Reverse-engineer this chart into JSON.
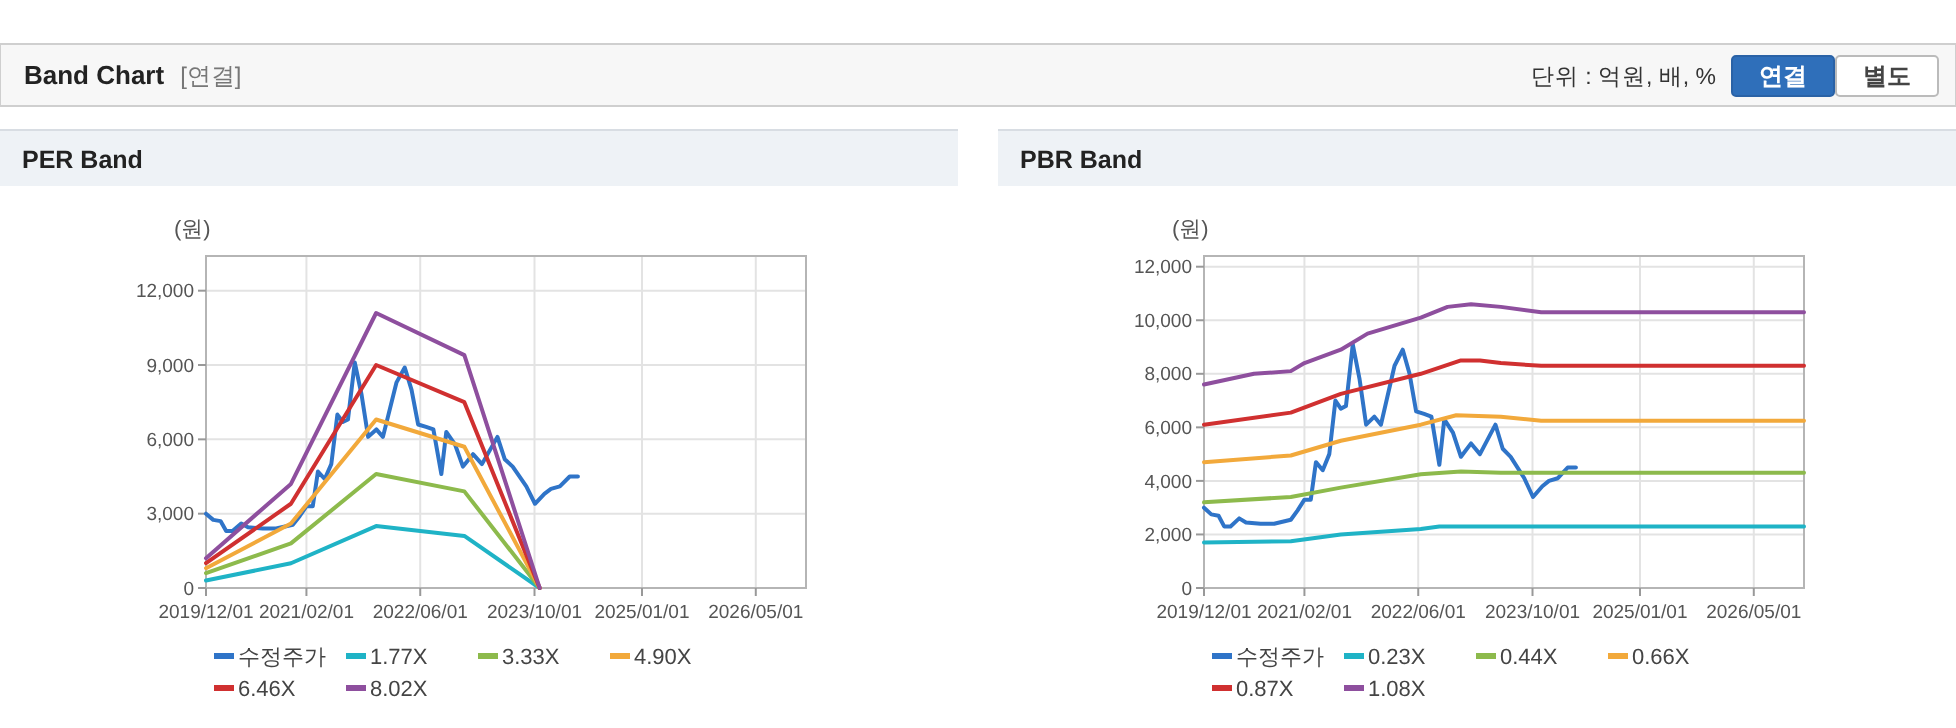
{
  "chart_data": [
    {
      "type": "other",
      "title": "Band Chart",
      "subtitle": "[연결]",
      "annotations": [
        "단위 : 억원, 배, %",
        "연결",
        "별도"
      ]
    },
    {
      "type": "line",
      "title": "PER Band",
      "ylabel": "(원)",
      "grid": true,
      "legend": "bottom",
      "xlim": [
        "2019-12-01",
        "2026-12-01"
      ],
      "ylim": [
        0,
        13400
      ],
      "xticks": [
        {
          "value": "2019-12-01",
          "label": "2019/12/01"
        },
        {
          "value": "2021-02-01",
          "label": "2021/02/01"
        },
        {
          "value": "2022-06-01",
          "label": "2022/06/01"
        },
        {
          "value": "2023-10-01",
          "label": "2023/10/01"
        },
        {
          "value": "2025-01-01",
          "label": "2025/01/01"
        },
        {
          "value": "2026-05-01",
          "label": "2026/05/01"
        }
      ],
      "yticks": [
        0,
        {
          "value": 3000,
          "label": "3,000"
        },
        {
          "value": 6000,
          "label": "6,000"
        },
        {
          "value": 9000,
          "label": "9,000"
        },
        {
          "value": 12000,
          "label": "12,000"
        }
      ],
      "series": [
        {
          "name": "수정주가",
          "color": "#2f74c8",
          "x": [
            "2019-12-01",
            "2020-01-01",
            "2020-02-01",
            "2020-02-25",
            "2020-03-23",
            "2020-04-29",
            "2020-05-28",
            "2020-07-29",
            "2020-09-25",
            "2020-12-05",
            "2021-01-03",
            "2021-02-01",
            "2021-02-28",
            "2021-03-22",
            "2021-04-20",
            "2021-05-18",
            "2021-06-13",
            "2021-07-06",
            "2021-07-28",
            "2021-08-26",
            "2021-09-24",
            "2021-10-22",
            "2021-11-26",
            "2021-12-24",
            "2022-02-20",
            "2022-03-27",
            "2022-04-25",
            "2022-05-23",
            "2022-06-26",
            "2022-07-27",
            "2022-08-30",
            "2022-09-20",
            "2022-10-27",
            "2022-11-30",
            "2023-01-12",
            "2023-02-19",
            "2023-04-26",
            "2023-05-27",
            "2023-06-30",
            "2023-08-27",
            "2023-10-03",
            "2023-11-12",
            "2023-12-10",
            "2024-01-17",
            "2024-02-28",
            "2024-04-03"
          ],
          "values": [
            3000,
            2750,
            2700,
            2300,
            2300,
            2600,
            2450,
            2400,
            2400,
            2550,
            2900,
            3300,
            3300,
            4700,
            4400,
            5000,
            7000,
            6700,
            6800,
            9100,
            7800,
            6100,
            6400,
            6100,
            8300,
            8900,
            8000,
            6600,
            6500,
            6400,
            4600,
            6300,
            5800,
            4900,
            5400,
            5000,
            6100,
            5200,
            4900,
            4100,
            3400,
            3800,
            4000,
            4100,
            4500,
            4500
          ]
        },
        {
          "name": "1.77X",
          "color": "#1fb3c6",
          "x": [
            "2019-12-01",
            "2020-11-27",
            "2021-11-25",
            "2022-12-06",
            "2023-10-23"
          ],
          "values": [
            300,
            1000,
            2500,
            2100,
            0
          ]
        },
        {
          "name": "3.33X",
          "color": "#8dba4c",
          "x": [
            "2019-12-01",
            "2020-11-27",
            "2021-11-25",
            "2022-12-06",
            "2023-10-23"
          ],
          "values": [
            600,
            1800,
            4600,
            3900,
            0
          ]
        },
        {
          "name": "4.90X",
          "color": "#f2a93b",
          "x": [
            "2019-12-01",
            "2020-11-27",
            "2021-11-25",
            "2022-12-06",
            "2023-10-23"
          ],
          "values": [
            800,
            2600,
            6800,
            5700,
            0
          ]
        },
        {
          "name": "6.46X",
          "color": "#d03030",
          "x": [
            "2019-12-01",
            "2020-11-27",
            "2021-11-25",
            "2022-12-06",
            "2023-10-23"
          ],
          "values": [
            1000,
            3400,
            9000,
            7500,
            0
          ]
        },
        {
          "name": "8.02X",
          "color": "#8e4f9e",
          "x": [
            "2019-12-01",
            "2020-11-27",
            "2021-11-25",
            "2022-12-06",
            "2023-10-23"
          ],
          "values": [
            1200,
            4200,
            11100,
            9400,
            0
          ]
        }
      ]
    },
    {
      "type": "line",
      "title": "PBR Band",
      "ylabel": "(원)",
      "grid": true,
      "legend": "bottom",
      "xlim": [
        "2019-12-01",
        "2026-12-01"
      ],
      "ylim": [
        0,
        12400
      ],
      "xticks": [
        {
          "value": "2019-12-01",
          "label": "2019/12/01"
        },
        {
          "value": "2021-02-01",
          "label": "2021/02/01"
        },
        {
          "value": "2022-06-01",
          "label": "2022/06/01"
        },
        {
          "value": "2023-10-01",
          "label": "2023/10/01"
        },
        {
          "value": "2025-01-01",
          "label": "2025/01/01"
        },
        {
          "value": "2026-05-01",
          "label": "2026/05/01"
        }
      ],
      "yticks": [
        0,
        {
          "value": 2000,
          "label": "2,000"
        },
        {
          "value": 4000,
          "label": "4,000"
        },
        {
          "value": 6000,
          "label": "6,000"
        },
        {
          "value": 8000,
          "label": "8,000"
        },
        {
          "value": 10000,
          "label": "10,000"
        },
        {
          "value": 12000,
          "label": "12,000"
        }
      ],
      "series": [
        {
          "name": "수정주가",
          "color": "#2f74c8",
          "x": [
            "2019-12-01",
            "2020-01-01",
            "2020-02-01",
            "2020-02-25",
            "2020-03-23",
            "2020-04-29",
            "2020-05-28",
            "2020-07-29",
            "2020-09-25",
            "2020-12-05",
            "2021-01-03",
            "2021-02-01",
            "2021-02-28",
            "2021-03-22",
            "2021-04-20",
            "2021-05-18",
            "2021-06-13",
            "2021-07-06",
            "2021-07-28",
            "2021-08-26",
            "2021-09-24",
            "2021-10-22",
            "2021-11-26",
            "2021-12-24",
            "2022-02-20",
            "2022-03-27",
            "2022-04-25",
            "2022-05-23",
            "2022-06-26",
            "2022-07-27",
            "2022-08-30",
            "2022-09-20",
            "2022-10-27",
            "2022-11-30",
            "2023-01-12",
            "2023-02-19",
            "2023-04-26",
            "2023-05-27",
            "2023-06-30",
            "2023-08-27",
            "2023-10-03",
            "2023-11-12",
            "2023-12-10",
            "2024-01-17",
            "2024-02-28",
            "2024-04-03"
          ],
          "values": [
            3000,
            2750,
            2700,
            2300,
            2300,
            2600,
            2450,
            2400,
            2400,
            2550,
            2900,
            3300,
            3300,
            4700,
            4400,
            5000,
            7000,
            6700,
            6800,
            9100,
            7800,
            6100,
            6400,
            6100,
            8300,
            8900,
            8000,
            6600,
            6500,
            6400,
            4600,
            6300,
            5800,
            4900,
            5400,
            5000,
            6100,
            5200,
            4900,
            4100,
            3400,
            3800,
            4000,
            4100,
            4500,
            4500
          ]
        },
        {
          "name": "0.23X",
          "color": "#1fb3c6",
          "x": [
            "2019-12-01",
            "2020-12-05",
            "2021-07-06",
            "2022-06-12",
            "2022-08-30",
            "2026-12-01"
          ],
          "values": [
            1700,
            1750,
            2000,
            2200,
            2300,
            2300
          ]
        },
        {
          "name": "0.44X",
          "color": "#8dba4c",
          "x": [
            "2019-12-01",
            "2020-12-05",
            "2021-07-06",
            "2022-06-12",
            "2022-11-30",
            "2023-05-19",
            "2026-12-01"
          ],
          "values": [
            3200,
            3400,
            3750,
            4250,
            4350,
            4300,
            4300
          ]
        },
        {
          "name": "0.66X",
          "color": "#f2a93b",
          "x": [
            "2019-12-01",
            "2020-12-05",
            "2021-07-06",
            "2022-06-12",
            "2022-11-10",
            "2023-05-19",
            "2023-11-07",
            "2026-12-01"
          ],
          "values": [
            4700,
            4950,
            5500,
            6100,
            6450,
            6400,
            6250,
            6250
          ]
        },
        {
          "name": "0.87X",
          "color": "#d03030",
          "x": [
            "2019-12-01",
            "2020-12-05",
            "2021-07-06",
            "2022-06-12",
            "2022-11-30",
            "2023-02-19",
            "2023-05-19",
            "2023-11-07",
            "2026-12-01"
          ],
          "values": [
            6100,
            6550,
            7250,
            8000,
            8500,
            8500,
            8400,
            8300,
            8300
          ]
        },
        {
          "name": "1.08X",
          "color": "#8e4f9e",
          "x": [
            "2019-12-01",
            "2020-07-01",
            "2020-12-05",
            "2021-02-01",
            "2021-07-06",
            "2021-10-28",
            "2022-06-12",
            "2022-10-04",
            "2023-01-12",
            "2023-05-19",
            "2023-11-07",
            "2026-12-01"
          ],
          "values": [
            7600,
            8000,
            8100,
            8400,
            8900,
            9500,
            10100,
            10500,
            10600,
            10500,
            10300,
            10300
          ]
        }
      ]
    }
  ]
}
